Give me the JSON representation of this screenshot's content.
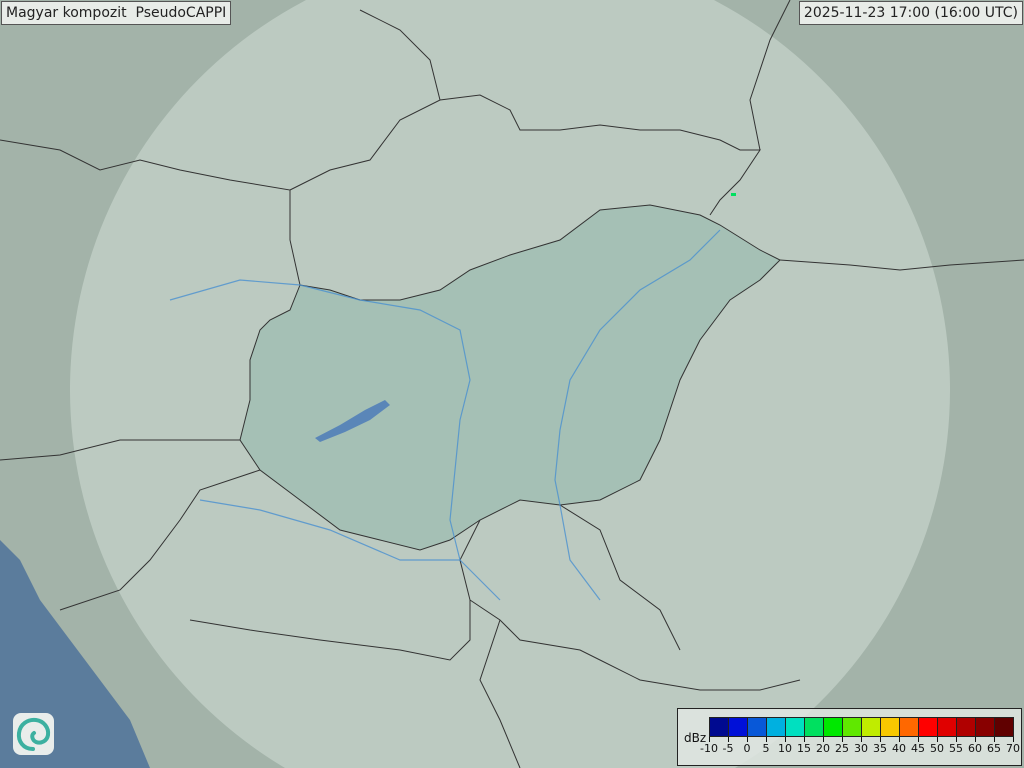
{
  "header": {
    "title": "Magyar kompozit  PseudoCAPPI",
    "timestamp": "2025-11-23 17:00 (16:00 UTC)"
  },
  "legend": {
    "unit": "dBz",
    "ticks": [
      "-10",
      "-5",
      "0",
      "5",
      "10",
      "15",
      "20",
      "25",
      "30",
      "35",
      "40",
      "45",
      "50",
      "55",
      "60",
      "65",
      "70"
    ],
    "colors": [
      "#000a90",
      "#0010d8",
      "#0858d8",
      "#00b0e0",
      "#00e0c0",
      "#00e060",
      "#00e800",
      "#60e800",
      "#c0ec00",
      "#f8c800",
      "#ff6800",
      "#ff0000",
      "#e00000",
      "#b00000",
      "#880000",
      "#600000"
    ]
  },
  "map": {
    "colors": {
      "land": "#a3b3a9",
      "radar_coverage": "#c4d1c9",
      "hungary": "#9fbdb1",
      "sea": "#5b7c9c",
      "border": "#333333",
      "river": "#4a90d0"
    },
    "logo_icon": "swirl-logo-icon",
    "echo_color": "#00e060"
  }
}
